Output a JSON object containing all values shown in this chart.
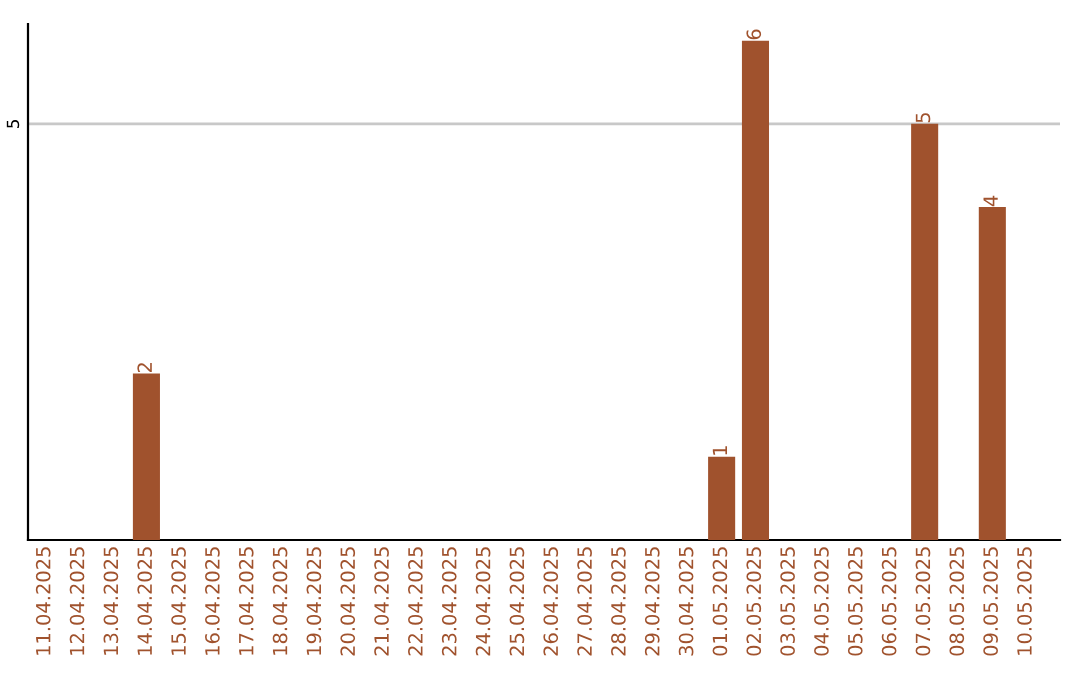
{
  "chart_data": {
    "type": "bar",
    "categories": [
      "11.04.2025",
      "12.04.2025",
      "13.04.2025",
      "14.04.2025",
      "15.04.2025",
      "16.04.2025",
      "17.04.2025",
      "18.04.2025",
      "19.04.2025",
      "20.04.2025",
      "21.04.2025",
      "22.04.2025",
      "23.04.2025",
      "24.04.2025",
      "25.04.2025",
      "26.04.2025",
      "27.04.2025",
      "28.04.2025",
      "29.04.2025",
      "30.04.2025",
      "01.05.2025",
      "02.05.2025",
      "03.05.2025",
      "04.05.2025",
      "05.05.2025",
      "06.05.2025",
      "07.05.2025",
      "08.05.2025",
      "09.05.2025",
      "10.05.2025"
    ],
    "values": [
      null,
      null,
      null,
      2,
      null,
      null,
      null,
      null,
      null,
      null,
      null,
      null,
      null,
      null,
      null,
      null,
      null,
      null,
      null,
      null,
      1,
      6,
      null,
      null,
      null,
      null,
      5,
      null,
      4,
      null
    ],
    "color": "#a0522d",
    "ylim": [
      0,
      6.2
    ],
    "yticks": [
      5
    ],
    "grid": "y",
    "data_labels": true
  }
}
